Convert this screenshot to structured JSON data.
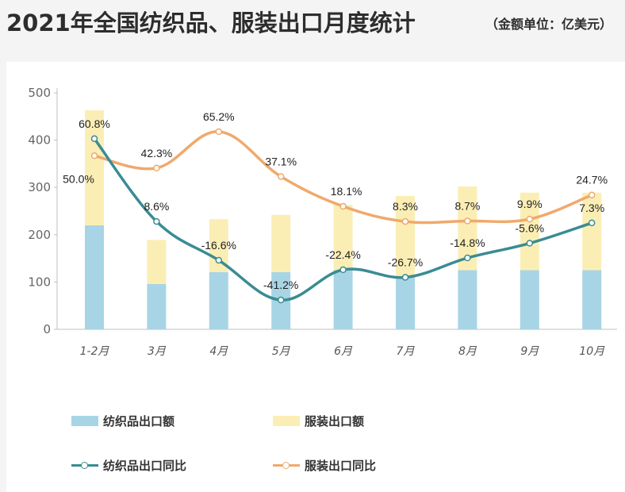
{
  "title": "2021年全国纺织品、服装出口月度统计",
  "unit": "（金额单位：亿美元）",
  "colors": {
    "textile_bar": "#a8d5e5",
    "apparel_bar": "#fbeeb5",
    "textile_line": "#3a8c93",
    "apparel_line": "#f0a96c"
  },
  "chart_data": {
    "type": "bar",
    "categories": [
      "1-2月",
      "3月",
      "4月",
      "5月",
      "6月",
      "7月",
      "8月",
      "9月",
      "10月"
    ],
    "ylim": [
      0,
      500
    ],
    "yticks": [
      0,
      100,
      200,
      300,
      400,
      500
    ],
    "grid": false,
    "legend_position": "bottom",
    "series": [
      {
        "name": "纺织品出口额",
        "kind": "bar",
        "values": [
          220,
          96,
          121,
          121,
          125,
          112,
          125,
          125,
          125
        ]
      },
      {
        "name": "服装出口额",
        "kind": "bar",
        "values": [
          243,
          93,
          112,
          121,
          138,
          170,
          177,
          164,
          164
        ]
      },
      {
        "name": "纺织品出口同比",
        "kind": "line",
        "plot_values": [
          403,
          228,
          146,
          62,
          126,
          110,
          151,
          182,
          225
        ],
        "labels": [
          "60.8%",
          "8.6%",
          "-16.6%",
          "-41.2%",
          "-22.4%",
          "-26.7%",
          "-14.8%",
          "-5.6%",
          "7.3%"
        ]
      },
      {
        "name": "服装出口同比",
        "kind": "line",
        "plot_values": [
          367,
          341,
          418,
          323,
          260,
          228,
          229,
          233,
          284
        ],
        "labels": [
          "50.0%",
          "42.3%",
          "65.2%",
          "37.1%",
          "18.1%",
          "8.3%",
          "8.7%",
          "9.9%",
          "24.7%"
        ]
      }
    ]
  }
}
